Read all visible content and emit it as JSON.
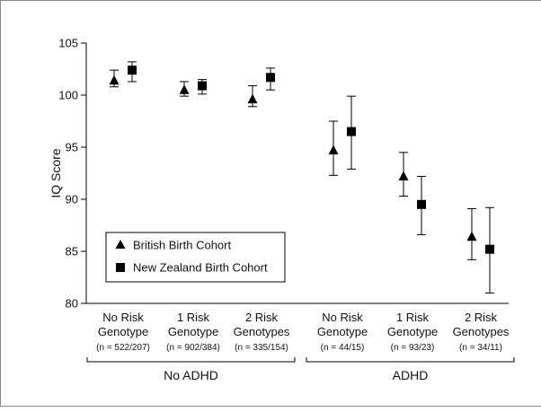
{
  "chart_data": {
    "type": "scatter",
    "ylabel": "IQ Score",
    "ylim": [
      80,
      105
    ],
    "yticks": [
      80,
      85,
      90,
      95,
      100,
      105
    ],
    "categories": [
      {
        "line1": "No Risk",
        "line2": "Genotype",
        "n": "(n = 522/207)"
      },
      {
        "line1": "1 Risk",
        "line2": "Genotype",
        "n": "(n = 902/384)"
      },
      {
        "line1": "2 Risk",
        "line2": "Genotypes",
        "n": "(n = 335/154)"
      },
      {
        "line1": "No Risk",
        "line2": "Genotype",
        "n": "(n = 44/15)"
      },
      {
        "line1": "1 Risk",
        "line2": "Genotype",
        "n": "(n = 93/23)"
      },
      {
        "line1": "2 Risk",
        "line2": "Genotypes",
        "n": "(n = 34/11)"
      }
    ],
    "groups": [
      {
        "label": "No ADHD",
        "from": 0,
        "to": 2
      },
      {
        "label": "ADHD",
        "from": 3,
        "to": 5
      }
    ],
    "series": [
      {
        "name": "British Birth Cohort",
        "marker": "triangle",
        "values": [
          101.4,
          100.5,
          99.6,
          94.7,
          92.2,
          86.4
        ],
        "err_low": [
          100.8,
          99.9,
          98.9,
          92.3,
          90.3,
          84.2
        ],
        "err_high": [
          102.4,
          101.3,
          100.9,
          97.5,
          94.5,
          89.1
        ]
      },
      {
        "name": "New Zealand Birth Cohort",
        "marker": "square",
        "values": [
          102.4,
          100.9,
          101.7,
          96.5,
          89.5,
          85.2
        ],
        "err_low": [
          101.3,
          100.1,
          100.5,
          92.9,
          86.6,
          81.0
        ],
        "err_high": [
          103.2,
          101.5,
          102.6,
          99.9,
          92.2,
          89.2
        ]
      }
    ],
    "legend_position": "bottom-left",
    "grid": false
  }
}
